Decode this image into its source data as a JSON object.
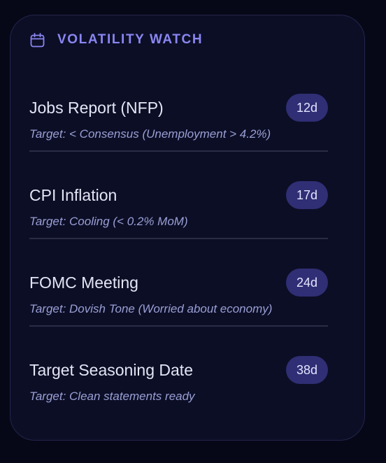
{
  "panel": {
    "title": "VOLATILITY WATCH",
    "icon": "calendar-icon",
    "accent_color": "#8a86f2",
    "badge_color": "#302e74"
  },
  "events": [
    {
      "name": "Jobs Report (NFP)",
      "days": "12d",
      "target": "Target: < Consensus (Unemployment > 4.2%)"
    },
    {
      "name": "CPI Inflation",
      "days": "17d",
      "target": "Target: Cooling (< 0.2% MoM)"
    },
    {
      "name": "FOMC Meeting",
      "days": "24d",
      "target": "Target: Dovish Tone (Worried about economy)"
    },
    {
      "name": "Target Seasoning Date",
      "days": "38d",
      "target": "Target: Clean statements ready"
    }
  ]
}
